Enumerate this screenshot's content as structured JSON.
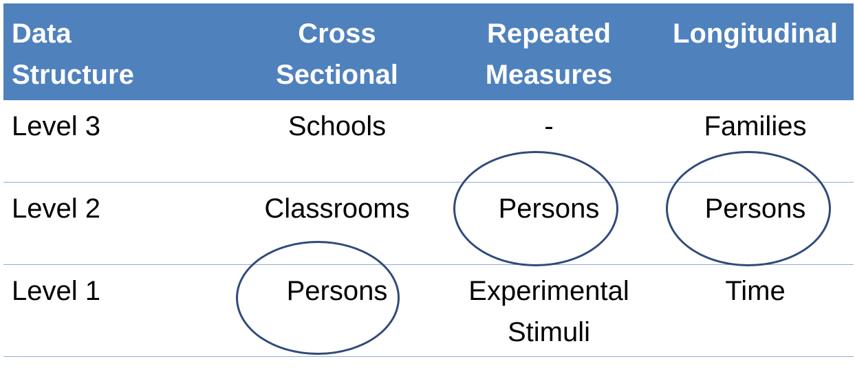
{
  "table": {
    "headers": [
      "Data\nStructure",
      "Cross\nSectional",
      "Repeated\nMeasures",
      "Longitudinal"
    ],
    "rows": [
      [
        "Level 3",
        "Schools",
        "-",
        "Families"
      ],
      [
        "Level 2",
        "Classrooms",
        "Persons",
        "Persons"
      ],
      [
        "Level 1",
        "Persons",
        "Experimental\nStimuli",
        "Time"
      ]
    ]
  },
  "colors": {
    "header_bg": "#4f81bd",
    "header_text": "#ffffff",
    "row_border": "#8eaadb",
    "ellipse_stroke": "#2f4a7a"
  },
  "highlights": [
    {
      "row": "Level 1",
      "column": "Cross\nSectional",
      "shape": "ellipse"
    },
    {
      "row": "Level 2",
      "column": "Repeated\nMeasures",
      "shape": "ellipse"
    },
    {
      "row": "Level 2",
      "column": "Longitudinal",
      "shape": "ellipse"
    }
  ]
}
